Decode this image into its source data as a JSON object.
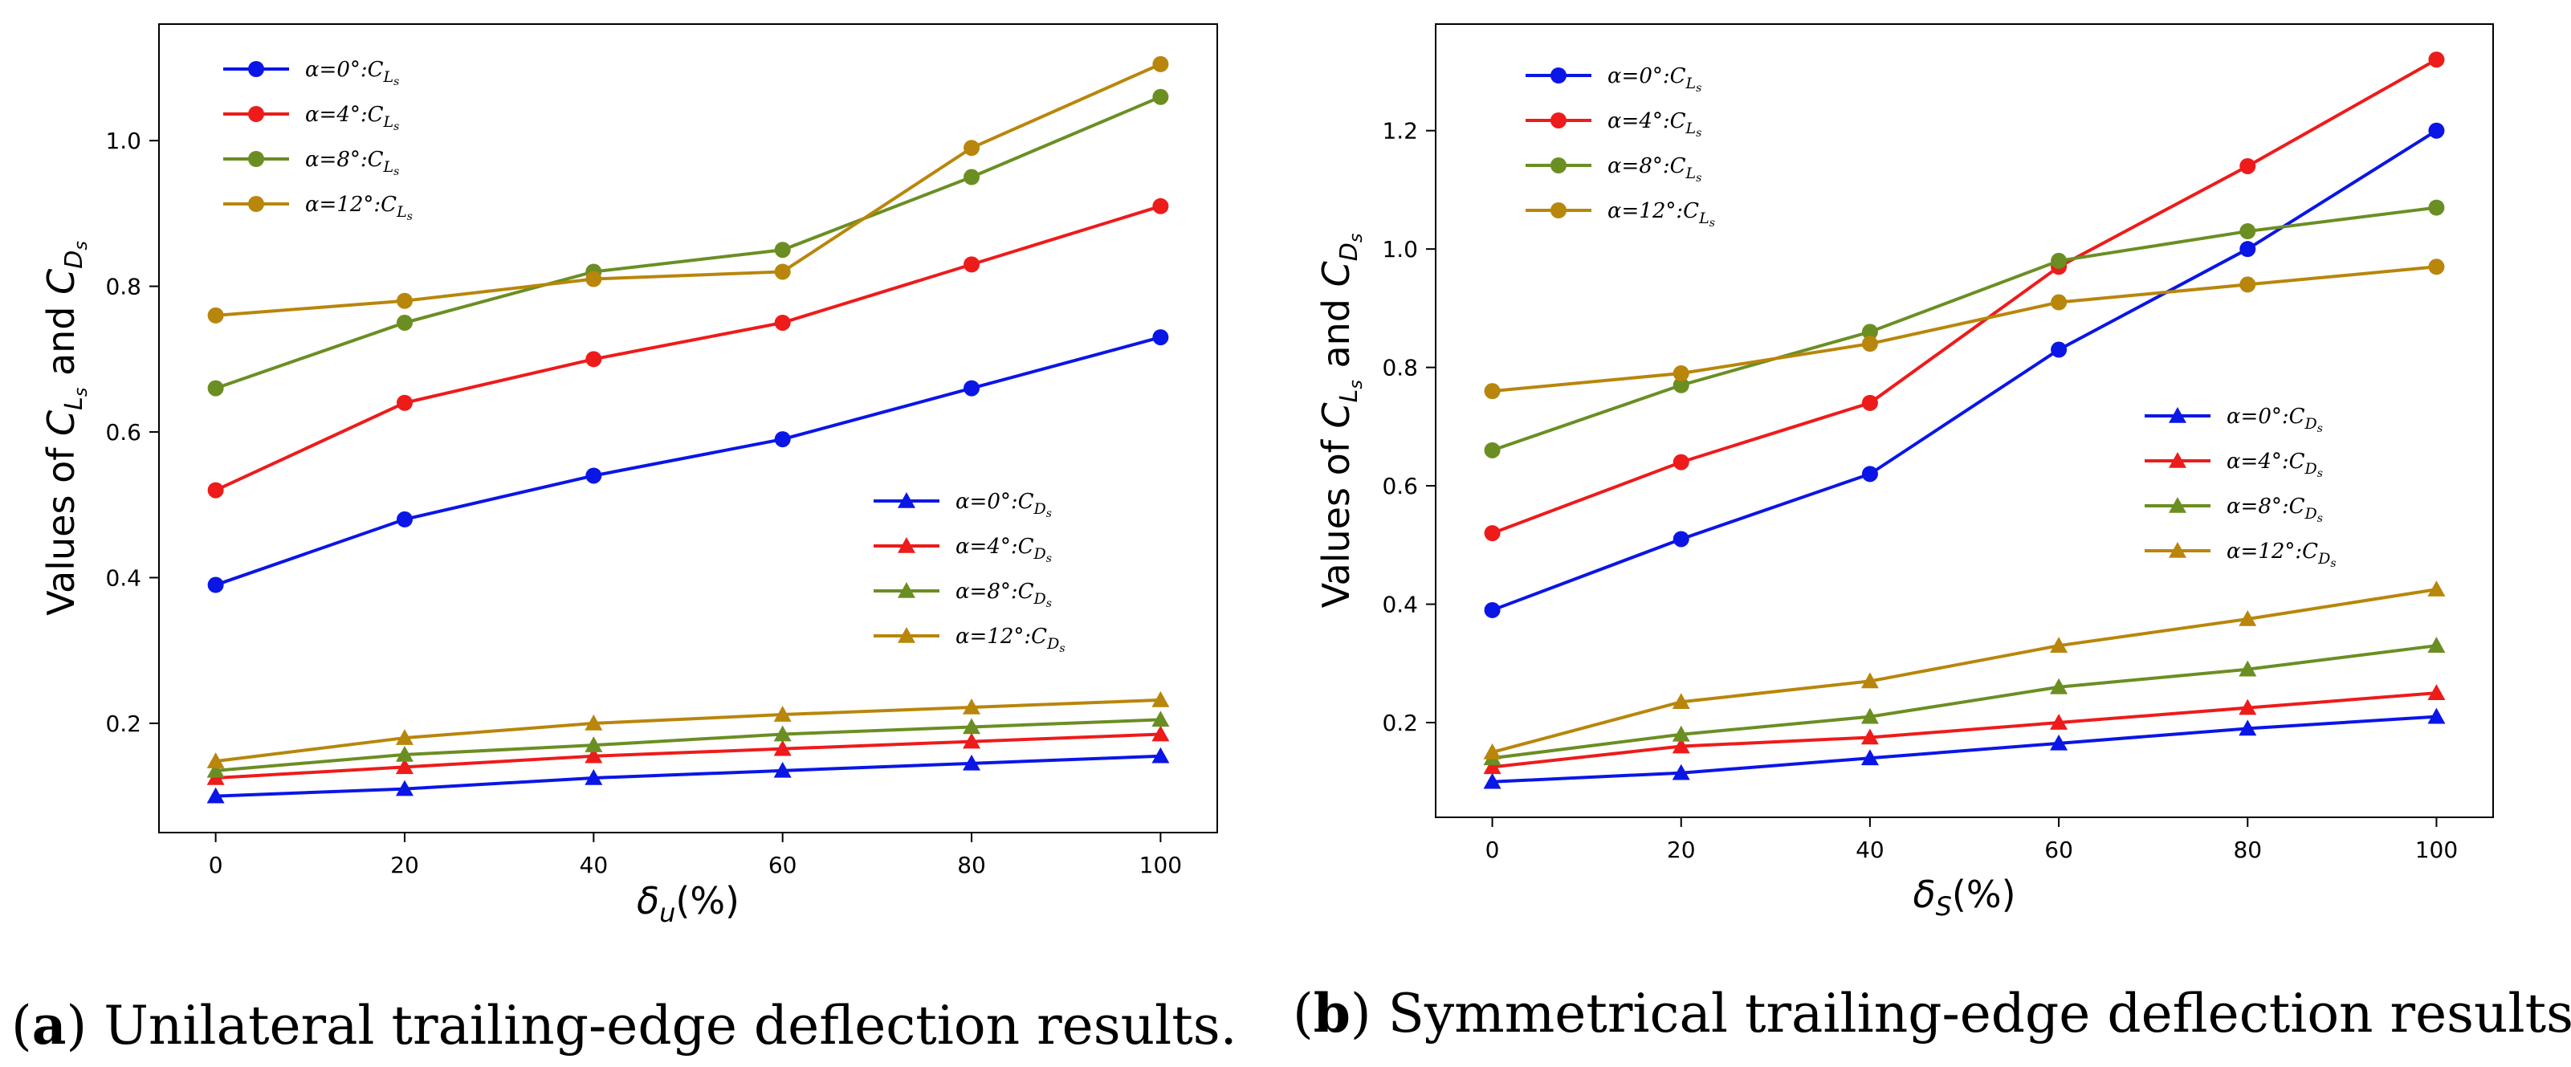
{
  "colors": {
    "blue": "#0a16e6",
    "red": "#ee1b1b",
    "green": "#6b8e23",
    "gold": "#b8860b"
  },
  "chart_data": [
    {
      "type": "line",
      "panel": "a",
      "xlabel_main": "δ",
      "xlabel_sub": "u",
      "xlabel_suffix": "(%)",
      "ylabel_prefix": "Values of ",
      "ylabel_and": " and ",
      "ylim": [
        0.05,
        1.16
      ],
      "xlim": [
        -6,
        106
      ],
      "x": [
        0,
        20,
        40,
        60,
        80,
        100
      ],
      "xticks": [
        "0",
        "20",
        "40",
        "60",
        "80",
        "100"
      ],
      "yticks": [
        0.2,
        0.4,
        0.6,
        0.8,
        1.0
      ],
      "ytick_labels": [
        "0.2",
        "0.4",
        "0.6",
        "0.8",
        "1.0"
      ],
      "series": [
        {
          "name": "α=0°:C_Ls",
          "label_main": "α=0°:C",
          "label_sub": "L",
          "label_subsub": "s",
          "group": "CL",
          "color": "#0a16e6",
          "marker": "circle",
          "values": [
            0.39,
            0.48,
            0.54,
            0.59,
            0.66,
            0.73
          ]
        },
        {
          "name": "α=4°:C_Ls",
          "label_main": "α=4°:C",
          "label_sub": "L",
          "label_subsub": "s",
          "group": "CL",
          "color": "#ee1b1b",
          "marker": "circle",
          "values": [
            0.52,
            0.64,
            0.7,
            0.75,
            0.83,
            0.91
          ]
        },
        {
          "name": "α=8°:C_Ls",
          "label_main": "α=8°:C",
          "label_sub": "L",
          "label_subsub": "s",
          "group": "CL",
          "color": "#6b8e23",
          "marker": "circle",
          "values": [
            0.66,
            0.75,
            0.82,
            0.85,
            0.95,
            1.06
          ]
        },
        {
          "name": "α=12°:C_Ls",
          "label_main": "α=12°:C",
          "label_sub": "L",
          "label_subsub": "s",
          "group": "CL",
          "color": "#b8860b",
          "marker": "circle",
          "values": [
            0.76,
            0.78,
            0.81,
            0.82,
            0.99,
            1.105
          ]
        },
        {
          "name": "α=0°:C_Ds",
          "label_main": "α=0°:C",
          "label_sub": "D",
          "label_subsub": "s",
          "group": "CD",
          "color": "#0a16e6",
          "marker": "triangle",
          "values": [
            0.1,
            0.11,
            0.125,
            0.135,
            0.145,
            0.155
          ]
        },
        {
          "name": "α=4°:C_Ds",
          "label_main": "α=4°:C",
          "label_sub": "D",
          "label_subsub": "s",
          "group": "CD",
          "color": "#ee1b1b",
          "marker": "triangle",
          "values": [
            0.125,
            0.14,
            0.155,
            0.165,
            0.175,
            0.185
          ]
        },
        {
          "name": "α=8°:C_Ds",
          "label_main": "α=8°:C",
          "label_sub": "D",
          "label_subsub": "s",
          "group": "CD",
          "color": "#6b8e23",
          "marker": "triangle",
          "values": [
            0.135,
            0.157,
            0.17,
            0.185,
            0.195,
            0.205
          ]
        },
        {
          "name": "α=12°:C_Ds",
          "label_main": "α=12°:C",
          "label_sub": "D",
          "label_subsub": "s",
          "group": "CD",
          "color": "#b8860b",
          "marker": "triangle",
          "values": [
            0.148,
            0.18,
            0.2,
            0.212,
            0.222,
            0.232
          ]
        }
      ],
      "legend_placement": [
        "top-left",
        "center-right"
      ],
      "caption_letter": "a",
      "caption_text": " Unilateral trailing-edge deflection results."
    },
    {
      "type": "line",
      "panel": "b",
      "xlabel_main": "δ",
      "xlabel_sub": "S",
      "xlabel_suffix": "(%)",
      "ylabel_prefix": "Values of ",
      "ylabel_and": " and ",
      "ylim": [
        0.04,
        1.38
      ],
      "xlim": [
        -6,
        106
      ],
      "x": [
        0,
        20,
        40,
        60,
        80,
        100
      ],
      "xticks": [
        "0",
        "20",
        "40",
        "60",
        "80",
        "100"
      ],
      "yticks": [
        0.2,
        0.4,
        0.6,
        0.8,
        1.0,
        1.2
      ],
      "ytick_labels": [
        "0.2",
        "0.4",
        "0.6",
        "0.8",
        "1.0",
        "1.2"
      ],
      "series": [
        {
          "name": "α=0°:C_Ls",
          "label_main": "α=0°:C",
          "label_sub": "L",
          "label_subsub": "s",
          "group": "CL",
          "color": "#0a16e6",
          "marker": "circle",
          "values": [
            0.39,
            0.51,
            0.62,
            0.83,
            1.0,
            1.2
          ]
        },
        {
          "name": "α=4°:C_Ls",
          "label_main": "α=4°:C",
          "label_sub": "L",
          "label_subsub": "s",
          "group": "CL",
          "color": "#ee1b1b",
          "marker": "circle",
          "values": [
            0.52,
            0.64,
            0.74,
            0.97,
            1.14,
            1.32
          ]
        },
        {
          "name": "α=8°:C_Ls",
          "label_main": "α=8°:C",
          "label_sub": "L",
          "label_subsub": "s",
          "group": "CL",
          "color": "#6b8e23",
          "marker": "circle",
          "values": [
            0.66,
            0.77,
            0.86,
            0.98,
            1.03,
            1.07
          ]
        },
        {
          "name": "α=12°:C_Ls",
          "label_main": "α=12°:C",
          "label_sub": "L",
          "label_subsub": "s",
          "group": "CL",
          "color": "#b8860b",
          "marker": "circle",
          "values": [
            0.76,
            0.79,
            0.84,
            0.91,
            0.94,
            0.97
          ]
        },
        {
          "name": "α=0°:C_Ds",
          "label_main": "α=0°:C",
          "label_sub": "D",
          "label_subsub": "s",
          "group": "CD",
          "color": "#0a16e6",
          "marker": "triangle",
          "values": [
            0.1,
            0.115,
            0.14,
            0.165,
            0.19,
            0.21
          ]
        },
        {
          "name": "α=4°:C_Ds",
          "label_main": "α=4°:C",
          "label_sub": "D",
          "label_subsub": "s",
          "group": "CD",
          "color": "#ee1b1b",
          "marker": "triangle",
          "values": [
            0.125,
            0.16,
            0.175,
            0.2,
            0.225,
            0.25
          ]
        },
        {
          "name": "α=8°:C_Ds",
          "label_main": "α=8°:C",
          "label_sub": "D",
          "label_subsub": "s",
          "group": "CD",
          "color": "#6b8e23",
          "marker": "triangle",
          "values": [
            0.14,
            0.18,
            0.21,
            0.26,
            0.29,
            0.33
          ]
        },
        {
          "name": "α=12°:C_Ds",
          "label_main": "α=12°:C",
          "label_sub": "D",
          "label_subsub": "s",
          "group": "CD",
          "color": "#b8860b",
          "marker": "triangle",
          "values": [
            0.15,
            0.235,
            0.27,
            0.33,
            0.375,
            0.425
          ]
        }
      ],
      "legend_placement": [
        "top-left",
        "center-right"
      ],
      "caption_letter": "b",
      "caption_text": " Symmetrical trailing-edge deflection results."
    }
  ]
}
